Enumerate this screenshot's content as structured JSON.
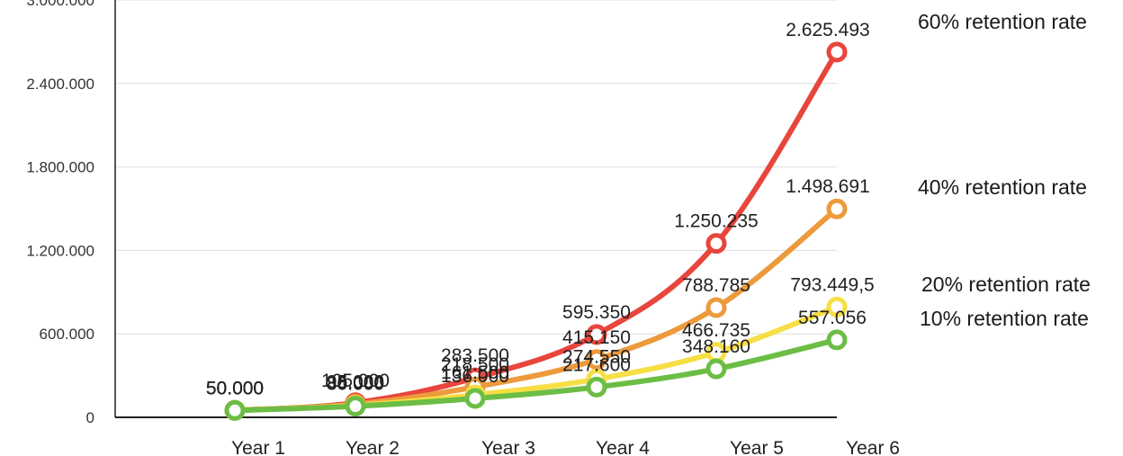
{
  "chart_data": {
    "type": "line",
    "categories": [
      "Year 1",
      "Year 2",
      "Year 3",
      "Year 4",
      "Year 5",
      "Year 6"
    ],
    "ylim": [
      0,
      3000000
    ],
    "yticks": [
      0,
      600000,
      1200000,
      1800000,
      2400000,
      3000000
    ],
    "ytick_labels": [
      "0",
      "600.000",
      "1.200.000",
      "1.800.000",
      "2.400.000",
      "3.000.000"
    ],
    "grid": true,
    "legend_placement": "right",
    "series": [
      {
        "name": "60% retention rate",
        "color": "#e8453c",
        "values": [
          50000,
          105000,
          283500,
          595350,
          1250235,
          2625493
        ],
        "labels": [
          "50.000",
          "105.000",
          "283.500",
          "595.350",
          "1.250.235",
          "2.625.493"
        ]
      },
      {
        "name": "40% retention rate",
        "color": "#ec9a3c",
        "values": [
          50000,
          95000,
          218500,
          415150,
          788785,
          1498691
        ],
        "labels": [
          "50.000",
          "95.000",
          "218.500",
          "415.150",
          "788.785",
          "1.498.691"
        ]
      },
      {
        "name": "20% retention rate",
        "color": "#f7de45",
        "values": [
          50000,
          85000,
          161500,
          274550,
          466735,
          793449
        ],
        "labels": [
          "50.000",
          "85.000",
          "161.500",
          "274.550",
          "466.735",
          "793.449,5"
        ]
      },
      {
        "name": "10% retention rate",
        "color": "#6cbd45",
        "values": [
          50000,
          80000,
          136000,
          217600,
          348160,
          557056
        ],
        "labels": [
          "50.000",
          "80.000",
          "136.000",
          "217.600",
          "348.160",
          "557.056"
        ]
      }
    ]
  }
}
